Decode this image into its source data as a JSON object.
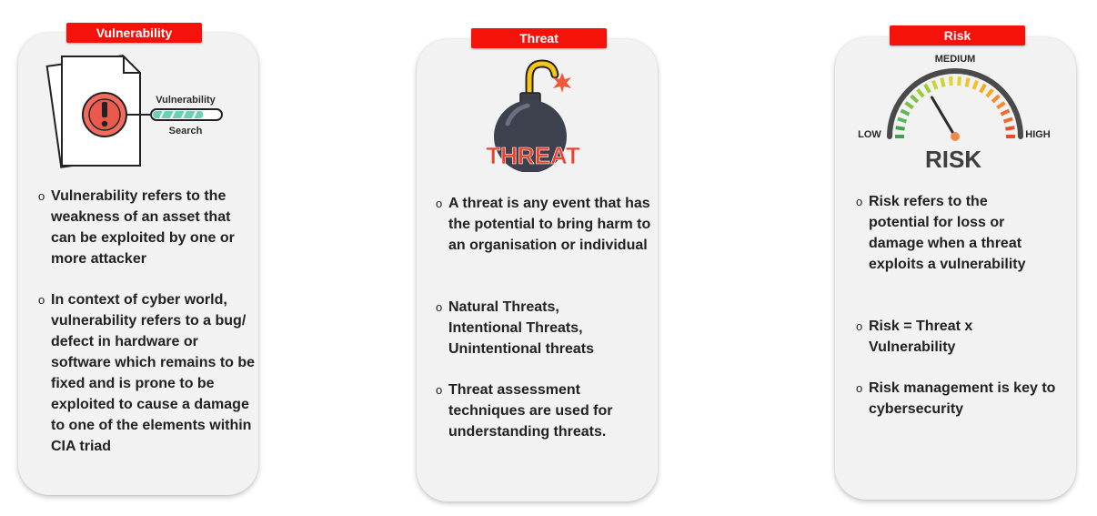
{
  "vulnerability": {
    "tag": "Vulnerability",
    "illustration": {
      "label_line1": "Vulnerability",
      "label_line2": "Search",
      "icon": "document-warning-icon",
      "progress": 0.75
    },
    "bullets": [
      "Vulnerability refers to the weakness of an asset that can be exploited by one or more attacker",
      "In context of cyber world, vulnerability refers to a bug/ defect in hardware or software which remains to be fixed and is prone to be exploited to cause a damage to one of the elements within CIA triad"
    ]
  },
  "threat": {
    "tag": "Threat",
    "illustration": {
      "label": "THREAT",
      "icon": "bomb-icon"
    },
    "bullets": [
      "A threat is any event that has the potential to bring harm to an organisation or individual",
      "Natural Threats, Intentional Threats, Unintentional threats",
      "Threat assessment techniques are used for understanding threats."
    ]
  },
  "risk": {
    "tag": "Risk",
    "illustration": {
      "label_low": "LOW",
      "label_medium": "MEDIUM",
      "label_high": "HIGH",
      "label_main": "RISK",
      "icon": "gauge-icon",
      "needle_level": 0.33
    },
    "bullets": [
      "Risk refers to the potential for loss or damage when a threat exploits a vulnerability",
      "Risk = Threat x Vulnerability",
      "Risk management is key to cybersecurity"
    ]
  },
  "colors": {
    "accent": "#f4120b",
    "card": "#f2f2f2",
    "threat_text": "#e9442b",
    "risk_text": "#3f3f3f"
  },
  "bullet_marker": "o"
}
